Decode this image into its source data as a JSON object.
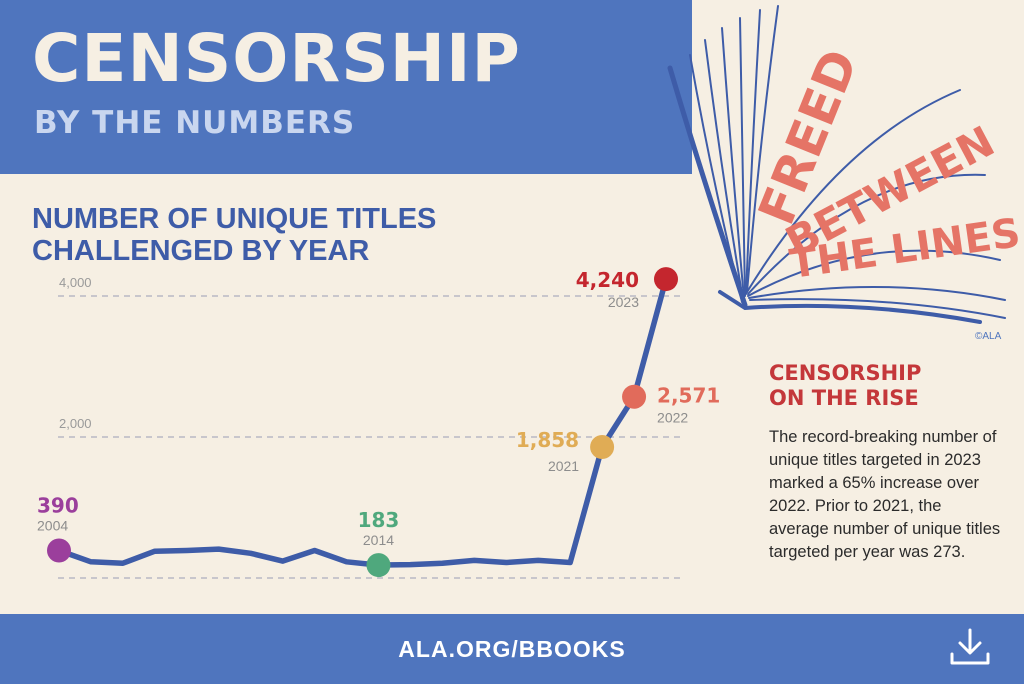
{
  "header": {
    "title": "CENSORSHIP",
    "subtitle": "BY THE NUMBERS"
  },
  "logo": {
    "lines": [
      "FREED",
      "BETWEEN",
      "THE LINES"
    ],
    "credit": "©ALA",
    "colors": {
      "text": "#e57466",
      "book": "#3e5ca8"
    }
  },
  "sidebar": {
    "heading_lines": [
      "CENSORSHIP",
      "ON THE RISE"
    ],
    "body": "The record-breaking number of unique titles targeted in 2023 marked a 65% increase over 2022. Prior to 2021, the average number of unique titles targeted per year was 273."
  },
  "footer": {
    "link": "ALA.ORG/BBOOKS",
    "download_icon": "download-icon"
  },
  "chart_data": {
    "type": "line",
    "title": "NUMBER OF UNIQUE TITLES CHALLENGED BY YEAR",
    "xlabel": "",
    "ylabel": "",
    "ylim": [
      0,
      4000
    ],
    "yticks": [
      {
        "value": 2000,
        "label": "2,000"
      },
      {
        "value": 4000,
        "label": "4,000"
      }
    ],
    "grid": true,
    "series": [
      {
        "color": "#3e5ca8",
        "x": [
          2004,
          2005,
          2006,
          2007,
          2008,
          2009,
          2010,
          2011,
          2012,
          2013,
          2014,
          2015,
          2016,
          2017,
          2018,
          2019,
          2020,
          2021,
          2022,
          2023
        ],
        "values": [
          390,
          230,
          210,
          380,
          390,
          410,
          350,
          240,
          390,
          230,
          183,
          190,
          210,
          250,
          220,
          250,
          220,
          1858,
          2571,
          4240
        ]
      }
    ],
    "highlights": [
      {
        "x": 2004,
        "value": 390,
        "label": "390",
        "year_label": "2004",
        "color": "#9b3f9c"
      },
      {
        "x": 2014,
        "value": 183,
        "label": "183",
        "year_label": "2014",
        "color": "#4fa87d"
      },
      {
        "x": 2021,
        "value": 1858,
        "label": "1,858",
        "year_label": "2021",
        "color": "#e0ac55"
      },
      {
        "x": 2022,
        "value": 2571,
        "label": "2,571",
        "year_label": "2022",
        "color": "#e16b5b"
      },
      {
        "x": 2023,
        "value": 4240,
        "label": "4,240",
        "year_label": "2023",
        "color": "#c4262e"
      }
    ]
  }
}
